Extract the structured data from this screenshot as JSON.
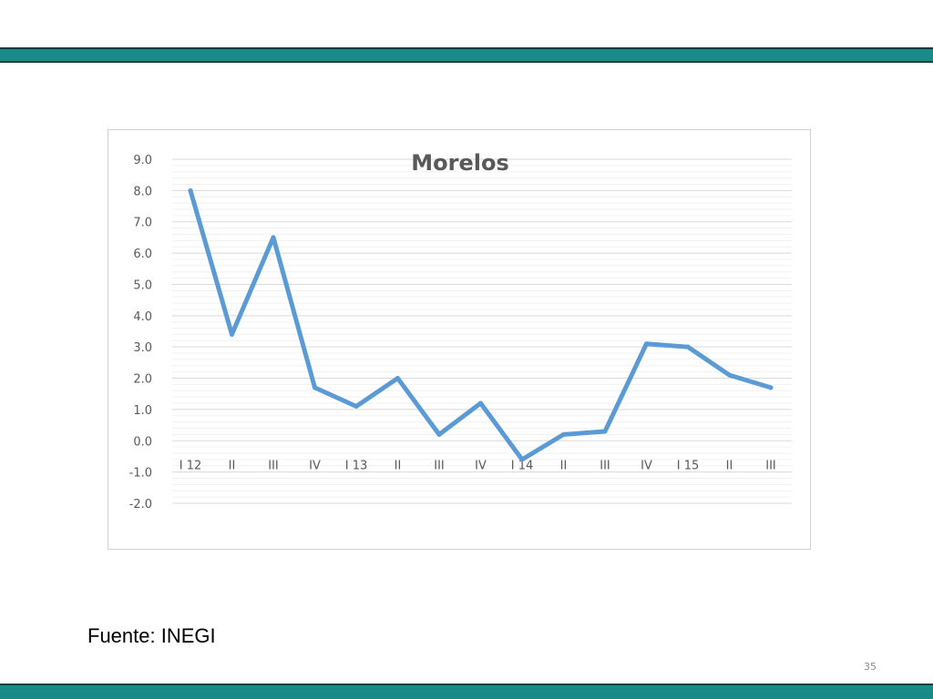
{
  "slide": {
    "source": "Fuente: INEGI",
    "page_number": "35"
  },
  "colors": {
    "bar_fill": "#1a8a88",
    "bar_border": "#0f3f3e",
    "series_line": "#5b9bd5",
    "gridline": "#d9d9d9",
    "text": "#595959"
  },
  "chart_data": {
    "type": "line",
    "title": "Morelos",
    "xlabel": "",
    "ylabel": "",
    "ylim": [
      -2.0,
      9.0
    ],
    "ytick_step": 1.0,
    "yticks": [
      "9.0",
      "8.0",
      "7.0",
      "6.0",
      "5.0",
      "4.0",
      "3.0",
      "2.0",
      "1.0",
      "0.0",
      "-1.0",
      "-2.0"
    ],
    "grid": true,
    "legend": "none",
    "categories": [
      "I 12",
      "II",
      "III",
      "IV",
      "I 13",
      "II",
      "III",
      "IV",
      "I 14",
      "II",
      "III",
      "IV",
      "I 15",
      "II",
      "III"
    ],
    "series": [
      {
        "values": [
          8.0,
          3.4,
          6.5,
          1.7,
          1.1,
          2.0,
          0.2,
          1.2,
          -0.6,
          0.2,
          0.3,
          3.1,
          3.0,
          2.1,
          1.7
        ]
      }
    ]
  }
}
